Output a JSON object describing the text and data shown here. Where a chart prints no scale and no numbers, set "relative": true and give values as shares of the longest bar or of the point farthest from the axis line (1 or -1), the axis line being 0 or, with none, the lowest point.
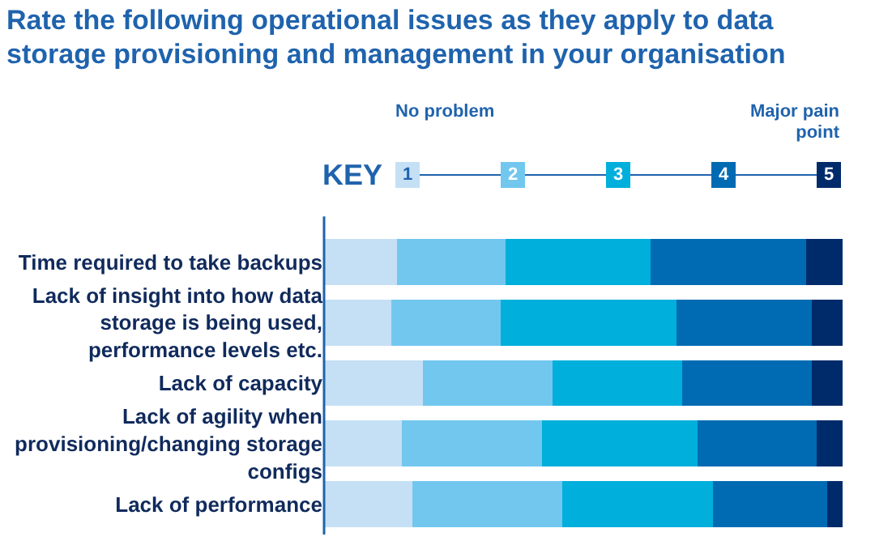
{
  "chart_data": {
    "type": "bar",
    "orientation": "horizontal",
    "stacked": true,
    "relative": true,
    "title": "Rate the following operational issues as they apply to data storage provisioning and management in your organisation",
    "legend_title": "KEY",
    "legend": "top",
    "annotations": [
      "No problem",
      "Major pain point"
    ],
    "categories": [
      "Time required to take backups",
      "Lack of insight into how data storage is being used, performance levels etc.",
      "Lack of capacity",
      "Lack of agility when provisioning/changing storage configs",
      "Lack of performance"
    ],
    "series": [
      {
        "name": "1",
        "color": "#c5e0f5",
        "values": [
          0.14,
          0.13,
          0.19,
          0.15,
          0.17
        ]
      },
      {
        "name": "2",
        "color": "#72c7ef",
        "values": [
          0.21,
          0.21,
          0.25,
          0.27,
          0.29
        ]
      },
      {
        "name": "3",
        "color": "#00afdb",
        "values": [
          0.28,
          0.34,
          0.25,
          0.3,
          0.29
        ]
      },
      {
        "name": "4",
        "color": "#006bb3",
        "values": [
          0.3,
          0.26,
          0.25,
          0.23,
          0.22
        ]
      },
      {
        "name": "5",
        "color": "#002b6b",
        "values": [
          0.07,
          0.06,
          0.06,
          0.05,
          0.03
        ]
      }
    ]
  }
}
